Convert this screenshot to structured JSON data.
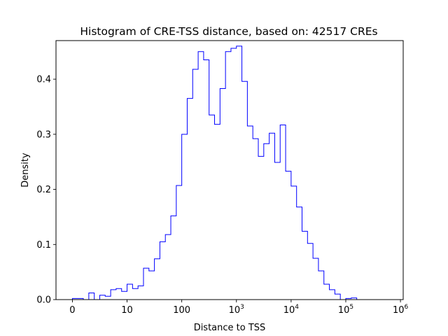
{
  "chart_data": {
    "type": "histogram",
    "title": "Histogram of CRE-TSS distance, based on: 42517 CREs",
    "xlabel": "Distance to TSS",
    "ylabel": "Density",
    "x_scale": "log10(distance + 1)",
    "xlim": [
      -0.3,
      6.05
    ],
    "ylim": [
      0,
      0.47
    ],
    "grid": false,
    "legend": "none",
    "line_color": "#0000ff",
    "x_ticks": [
      {
        "value": 0,
        "base": "0",
        "exp": ""
      },
      {
        "value": 1,
        "base": "10",
        "exp": ""
      },
      {
        "value": 2,
        "base": "100",
        "exp": ""
      },
      {
        "value": 3,
        "base": "10",
        "exp": "3"
      },
      {
        "value": 4,
        "base": "10",
        "exp": "4"
      },
      {
        "value": 5,
        "base": "10",
        "exp": "5"
      },
      {
        "value": 6,
        "base": "10",
        "exp": "6"
      }
    ],
    "y_ticks": [
      {
        "value": 0.0,
        "label": "0.0"
      },
      {
        "value": 0.1,
        "label": "0.1"
      },
      {
        "value": 0.2,
        "label": "0.2"
      },
      {
        "value": 0.3,
        "label": "0.3"
      },
      {
        "value": 0.4,
        "label": "0.4"
      }
    ],
    "bin_edges": [
      0.0,
      0.1,
      0.2,
      0.3,
      0.4,
      0.5,
      0.6,
      0.7,
      0.8,
      0.9,
      1.0,
      1.1,
      1.2,
      1.3,
      1.4,
      1.5,
      1.6,
      1.7,
      1.8,
      1.9,
      2.0,
      2.1,
      2.2,
      2.3,
      2.4,
      2.5,
      2.6,
      2.7,
      2.8,
      2.9,
      3.0,
      3.1,
      3.2,
      3.3,
      3.4,
      3.5,
      3.6,
      3.7,
      3.8,
      3.9,
      4.0,
      4.1,
      4.2,
      4.3,
      4.4,
      4.5,
      4.6,
      4.7,
      4.8,
      4.9,
      5.0,
      5.1,
      5.2,
      5.3,
      5.4,
      5.5,
      5.6,
      5.7,
      5.8
    ],
    "densities": [
      0.002,
      0.002,
      0.0,
      0.012,
      0.0,
      0.008,
      0.006,
      0.018,
      0.02,
      0.015,
      0.028,
      0.02,
      0.025,
      0.057,
      0.052,
      0.074,
      0.105,
      0.118,
      0.152,
      0.207,
      0.3,
      0.365,
      0.418,
      0.45,
      0.435,
      0.335,
      0.318,
      0.383,
      0.45,
      0.456,
      0.46,
      0.396,
      0.315,
      0.292,
      0.26,
      0.283,
      0.302,
      0.249,
      0.317,
      0.233,
      0.206,
      0.168,
      0.124,
      0.102,
      0.075,
      0.052,
      0.028,
      0.018,
      0.01,
      0.0,
      0.002,
      0.003,
      0.0,
      0.0,
      0.0,
      0.0,
      0.0,
      0.0
    ]
  }
}
